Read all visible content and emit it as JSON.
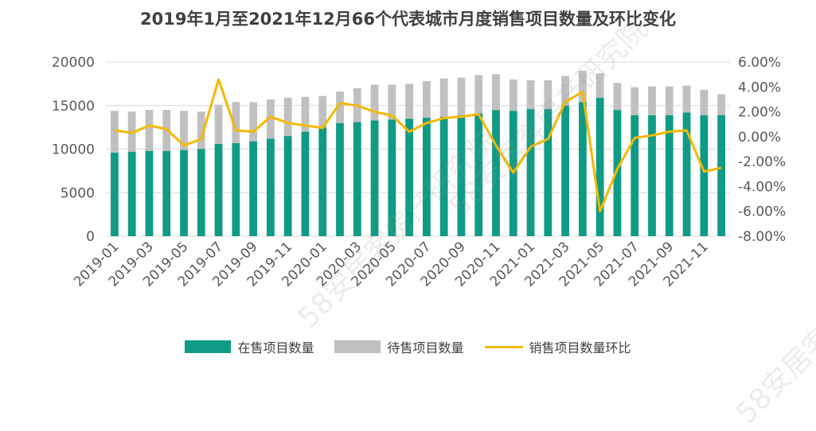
{
  "chart_data": {
    "type": "bar+line",
    "title": "2019年1月至2021年12月66个代表城市月度销售项目数量及环比变化",
    "categories": [
      "2019-01",
      "2019-02",
      "2019-03",
      "2019-04",
      "2019-05",
      "2019-06",
      "2019-07",
      "2019-08",
      "2019-09",
      "2019-10",
      "2019-11",
      "2019-12",
      "2020-01",
      "2020-02",
      "2020-03",
      "2020-04",
      "2020-05",
      "2020-06",
      "2020-07",
      "2020-08",
      "2020-09",
      "2020-10",
      "2020-11",
      "2020-12",
      "2021-01",
      "2021-02",
      "2021-03",
      "2021-04",
      "2021-05",
      "2021-06",
      "2021-07",
      "2021-08",
      "2021-09",
      "2021-10",
      "2021-11",
      "2021-12"
    ],
    "x_tick_labels": [
      "2019-01",
      "2019-03",
      "2019-05",
      "2019-07",
      "2019-09",
      "2019-11",
      "2020-01",
      "2020-03",
      "2020-05",
      "2020-07",
      "2020-09",
      "2020-11",
      "2021-01",
      "2021-03",
      "2021-05",
      "2021-07",
      "2021-09",
      "2021-11"
    ],
    "series": [
      {
        "name": "在售项目数量",
        "kind": "bar",
        "color": "#0f9b86",
        "values": [
          9600,
          9700,
          9800,
          9800,
          9900,
          10000,
          10600,
          10700,
          10900,
          11200,
          11500,
          12000,
          12500,
          13000,
          13100,
          13300,
          13400,
          13500,
          13600,
          13700,
          13900,
          14100,
          14500,
          14400,
          14600,
          14600,
          15000,
          15400,
          15900,
          14500,
          13900,
          13900,
          13900,
          14200,
          13900,
          13900
        ]
      },
      {
        "name": "待售项目数量",
        "kind": "bar-stack",
        "color": "#c0c0c0",
        "values": [
          4800,
          4600,
          4700,
          4700,
          4500,
          4300,
          4500,
          4700,
          4500,
          4500,
          4400,
          4000,
          3600,
          3600,
          3900,
          4100,
          4000,
          4000,
          4200,
          4400,
          4300,
          4400,
          4100,
          3600,
          3300,
          3300,
          3400,
          3600,
          2800,
          3100,
          3200,
          3300,
          3300,
          3100,
          2900,
          2400
        ]
      },
      {
        "name": "销售项目数量环比",
        "kind": "line",
        "axis": "right",
        "color": "#f5b800",
        "values": [
          0.5,
          0.3,
          0.9,
          0.6,
          -0.7,
          -0.2,
          4.6,
          0.5,
          0.4,
          1.6,
          1.1,
          0.9,
          0.7,
          2.7,
          2.5,
          2.0,
          1.7,
          0.4,
          1.1,
          1.5,
          1.6,
          1.8,
          -0.7,
          -2.9,
          -0.8,
          -0.2,
          2.8,
          3.6,
          -6.0,
          -2.6,
          -0.1,
          0.1,
          0.4,
          0.5,
          -2.8,
          -2.5
        ]
      }
    ],
    "y_left": {
      "min": 0,
      "max": 20000,
      "ticks": [
        0,
        5000,
        10000,
        15000,
        20000
      ],
      "tick_labels": [
        "0",
        "5000",
        "10000",
        "15000",
        "20000"
      ]
    },
    "y_right": {
      "min": -8,
      "max": 6,
      "ticks": [
        -8,
        -6,
        -4,
        -2,
        0,
        2,
        4,
        6
      ],
      "tick_labels": [
        "-8.00%",
        "-6.00%",
        "-4.00%",
        "-2.00%",
        "0.00%",
        "2.00%",
        "4.00%",
        "6.00%"
      ]
    },
    "grid": true,
    "legend_position": "bottom"
  }
}
